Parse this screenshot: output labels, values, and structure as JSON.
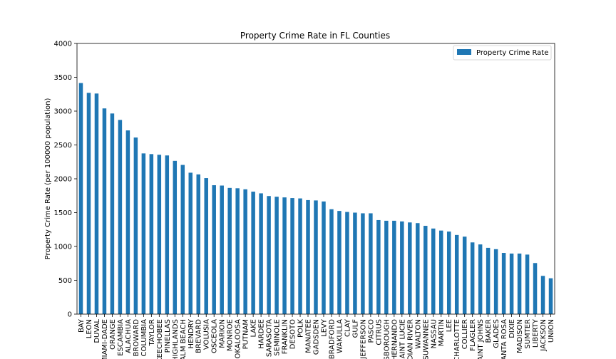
{
  "chart_data": {
    "type": "bar",
    "title": "Property Crime Rate in FL Counties",
    "xlabel": "",
    "ylabel": "Property Crime Rate (per 100000 population)",
    "ylim": [
      0,
      4000
    ],
    "yticks": [
      0,
      500,
      1000,
      1500,
      2000,
      2500,
      3000,
      3500,
      4000
    ],
    "legend_position": "top-right",
    "grid": false,
    "colors": {
      "bar": "#1f77b4"
    },
    "categories": [
      "BAY",
      "LEON",
      "DUVAL",
      "MIAMI-DADE",
      "ORANGE",
      "ESCAMBIA",
      "ALACHUA",
      "BROWARD",
      "COLUMBIA",
      "TAYLOR",
      "OKEECHOBEE",
      "PINELLAS",
      "HIGHLANDS",
      "PALM BEACH",
      "HENDRY",
      "BREVARD",
      "VOLUSIA",
      "OSCEOLA",
      "MARION",
      "MONROE",
      "OKALOOSA",
      "PUTNAM",
      "LAKE",
      "HARDEE",
      "SARASOTA",
      "SEMINOLE",
      "FRANKLIN",
      "DESOTO",
      "POLK",
      "MANATEE",
      "GADSDEN",
      "LEVY",
      "BRADFORD",
      "WAKULLA",
      "CLAY",
      "GULF",
      "JEFFERSON",
      "PASCO",
      "CITRUS",
      "HILLSBOROUGH",
      "HERNANDO",
      "SAINT LUCIE",
      "INDIAN RIVER",
      "WALTON",
      "SUWANNEE",
      "NASSAU",
      "MARTIN",
      "LEE",
      "CHARLOTTE",
      "COLLIER",
      "FLAGLER",
      "SAINT JOHNS",
      "BAKER",
      "GLADES",
      "SANTA ROSA",
      "DIXIE",
      "MADISON",
      "SUMTER",
      "LIBERTY",
      "JACKSON",
      "UNION"
    ],
    "series": [
      {
        "name": "Property Crime Rate",
        "values": [
          3415,
          3270,
          3260,
          3040,
          2965,
          2870,
          2715,
          2610,
          2375,
          2365,
          2355,
          2345,
          2265,
          2205,
          2090,
          2065,
          2010,
          1905,
          1900,
          1865,
          1860,
          1845,
          1810,
          1785,
          1745,
          1735,
          1725,
          1715,
          1710,
          1685,
          1680,
          1665,
          1550,
          1525,
          1510,
          1500,
          1490,
          1490,
          1390,
          1380,
          1380,
          1370,
          1355,
          1345,
          1305,
          1265,
          1235,
          1220,
          1170,
          1145,
          1060,
          1030,
          980,
          960,
          905,
          895,
          895,
          880,
          755,
          565,
          530
        ]
      }
    ]
  }
}
